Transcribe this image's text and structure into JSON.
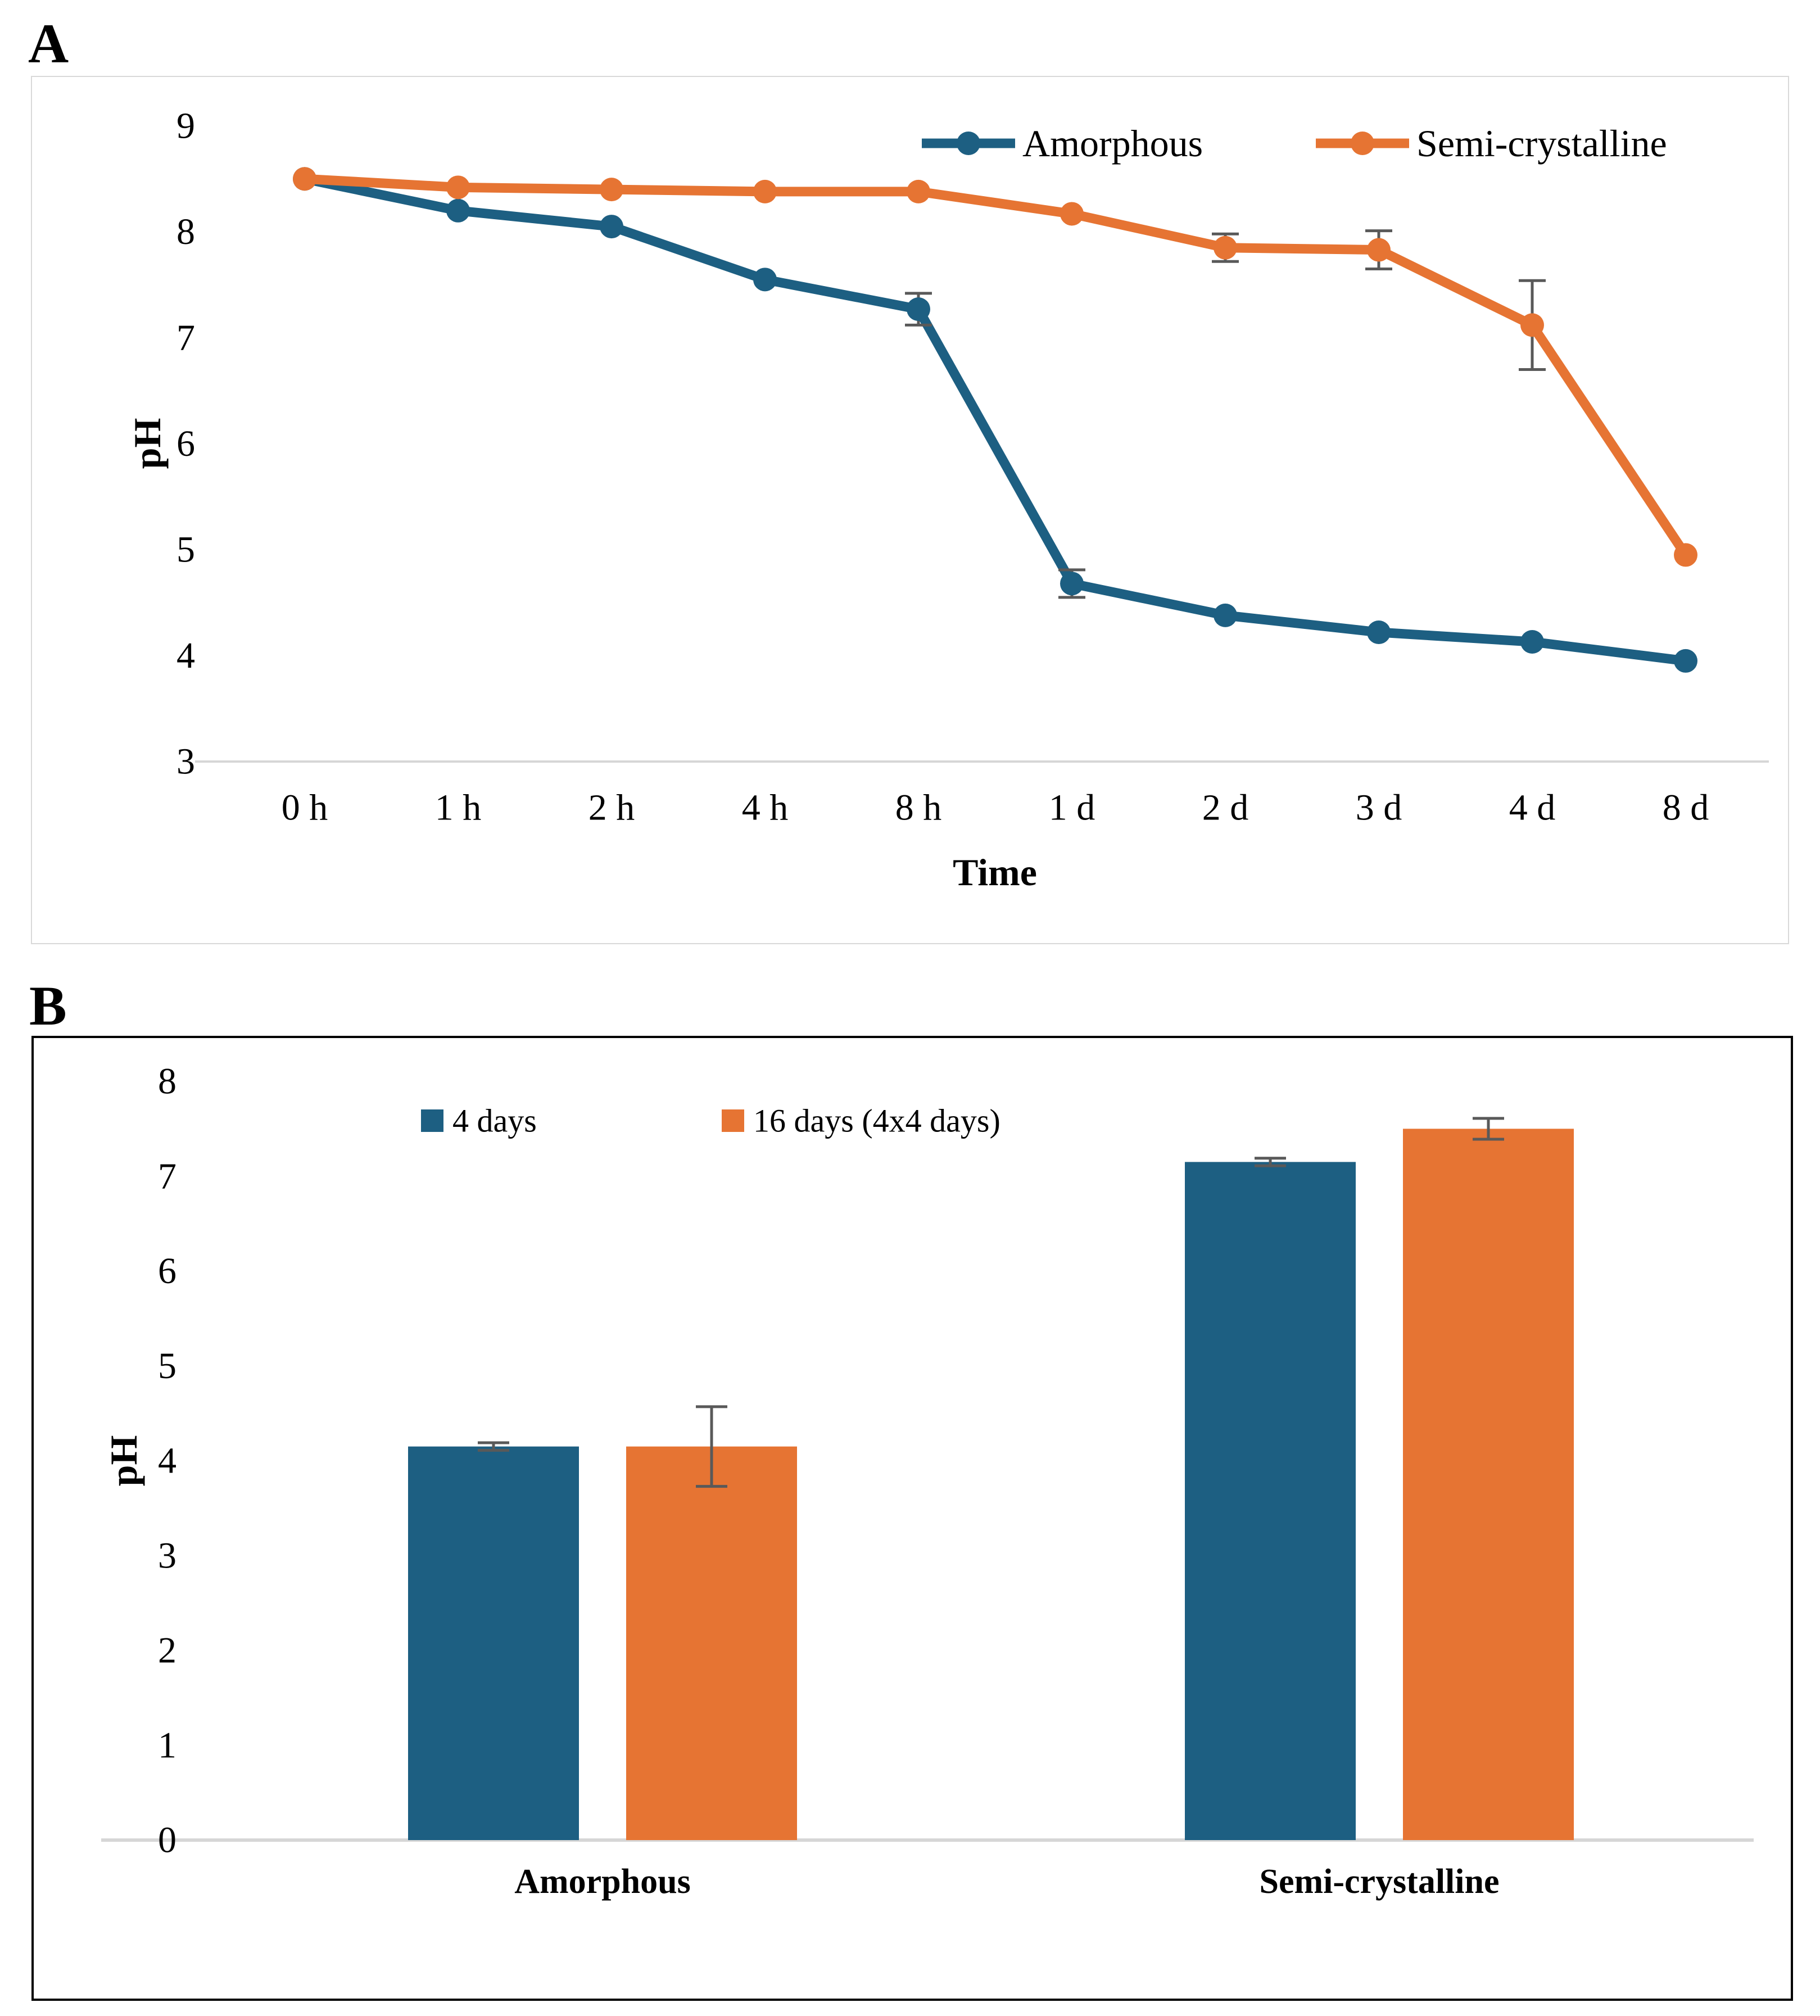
{
  "panel_a": {
    "label": "A",
    "chart_data": {
      "type": "line",
      "title": "",
      "xlabel": "Time",
      "ylabel": "pH",
      "ylim": [
        3,
        9
      ],
      "yticks": [
        9,
        8,
        7,
        6,
        5,
        4,
        3
      ],
      "grid": false,
      "legend_position": "top-right-inside",
      "categories": [
        "0 h",
        "1 h",
        "2 h",
        "4 h",
        "8 h",
        "1 d",
        "2 d",
        "3 d",
        "4 d",
        "8 d"
      ],
      "series": [
        {
          "name": "Amorphous",
          "color": "#1d5f82",
          "values": [
            8.5,
            8.2,
            8.05,
            7.55,
            7.27,
            4.68,
            4.38,
            4.22,
            4.13,
            3.95
          ],
          "errors": [
            0,
            0,
            0,
            0,
            0.15,
            0.13,
            0,
            0,
            0,
            0
          ]
        },
        {
          "name": "Semi-crystalline",
          "color": "#e67433",
          "values": [
            8.5,
            8.42,
            8.4,
            8.38,
            8.38,
            8.17,
            7.85,
            7.83,
            7.12,
            4.95
          ],
          "errors": [
            0,
            0,
            0,
            0,
            0,
            0,
            0.13,
            0.18,
            0.42,
            0
          ]
        }
      ]
    }
  },
  "panel_b": {
    "label": "B",
    "chart_data": {
      "type": "bar",
      "title": "",
      "xlabel": "",
      "ylabel": "pH",
      "ylim": [
        0,
        8
      ],
      "yticks": [
        8,
        7,
        6,
        5,
        4,
        3,
        2,
        1,
        0
      ],
      "grid": false,
      "legend_position": "top-left-inside",
      "categories": [
        "Amorphous",
        "Semi-crystalline"
      ],
      "series": [
        {
          "name": "4 days",
          "color": "#1d5f82",
          "values": [
            4.15,
            7.15
          ],
          "errors": [
            0.04,
            0.04
          ]
        },
        {
          "name": "16 days (4x4 days)",
          "color": "#e67433",
          "values": [
            4.15,
            7.5
          ],
          "errors": [
            0.42,
            0.11
          ]
        }
      ]
    }
  },
  "colors": {
    "amorphous": "#1d5f82",
    "semi_crystalline": "#e67433",
    "error_bar": "#595959",
    "axis_line": "#d6d6d6",
    "panel_a_border": "#d9d9d9",
    "panel_b_border": "#000000",
    "text": "#000000"
  }
}
